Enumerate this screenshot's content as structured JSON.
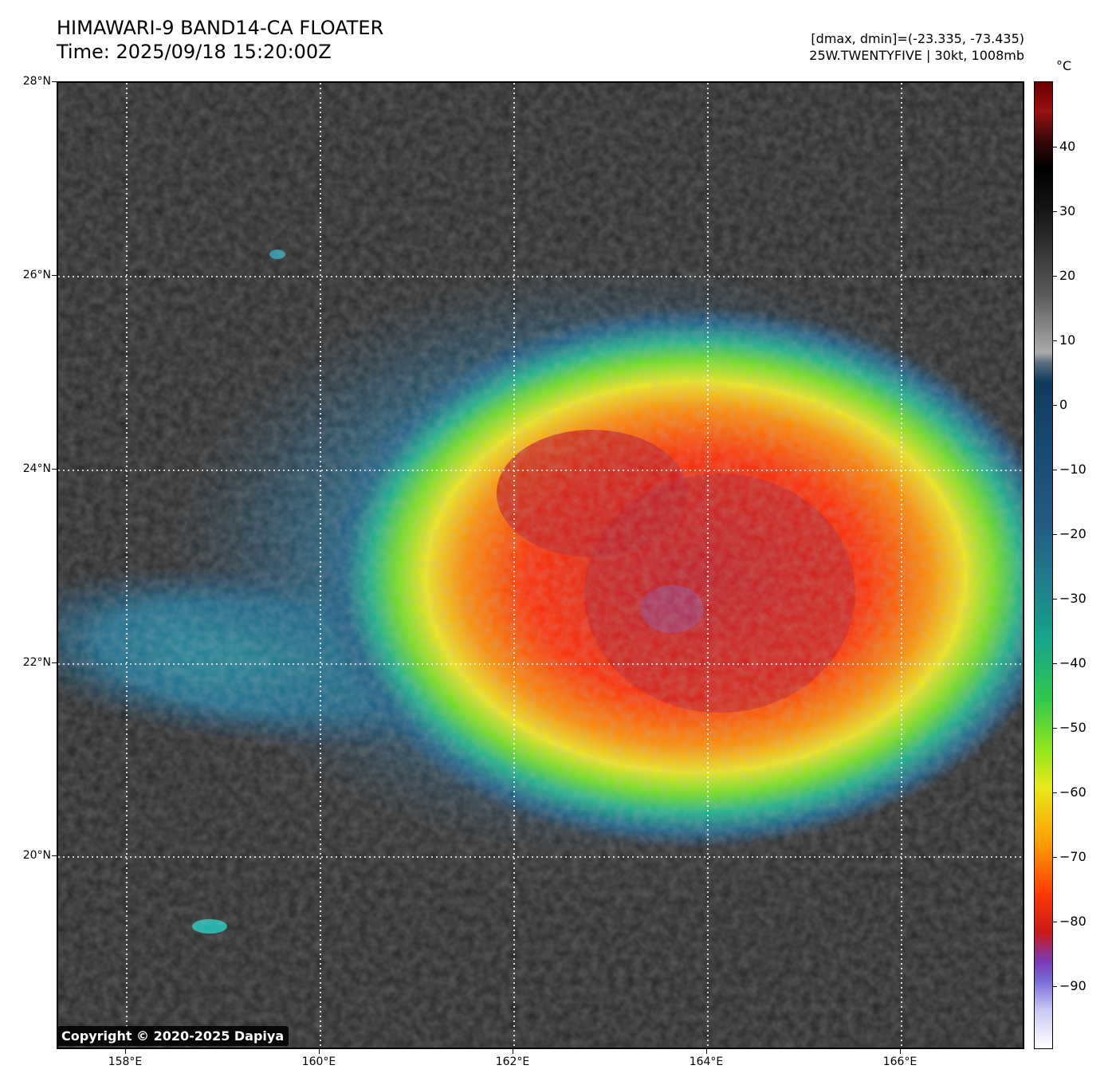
{
  "header": {
    "title": "HIMAWARI-9 BAND14-CA FLOATER",
    "time": "Time: 2025/09/18 15:20:00Z",
    "range": "[dmax, dmin]=(-23.335, -73.435)",
    "storm": "25W.TWENTYFIVE | 30kt, 1008mb"
  },
  "axes": {
    "lat_labels": [
      "28°N",
      "26°N",
      "24°N",
      "22°N",
      "20°N"
    ],
    "lon_labels": [
      "158°E",
      "160°E",
      "162°E",
      "164°E",
      "166°E"
    ]
  },
  "colorbar": {
    "unit": "°C",
    "labels": [
      "40",
      "30",
      "20",
      "10",
      "0",
      "−10",
      "−20",
      "−30",
      "−40",
      "−50",
      "−60",
      "−70",
      "−80",
      "−90"
    ],
    "gradient_colors": [
      "#6a0000",
      "#000000",
      "#aaaaaa",
      "#0f3b5c",
      "#1f7f8c",
      "#32c94a",
      "#e8e81a",
      "#ff9a00",
      "#c81a1a",
      "#7a6ad8",
      "#ffffff"
    ]
  },
  "copyright": "Copyright © 2020-2025 Dapiya"
}
